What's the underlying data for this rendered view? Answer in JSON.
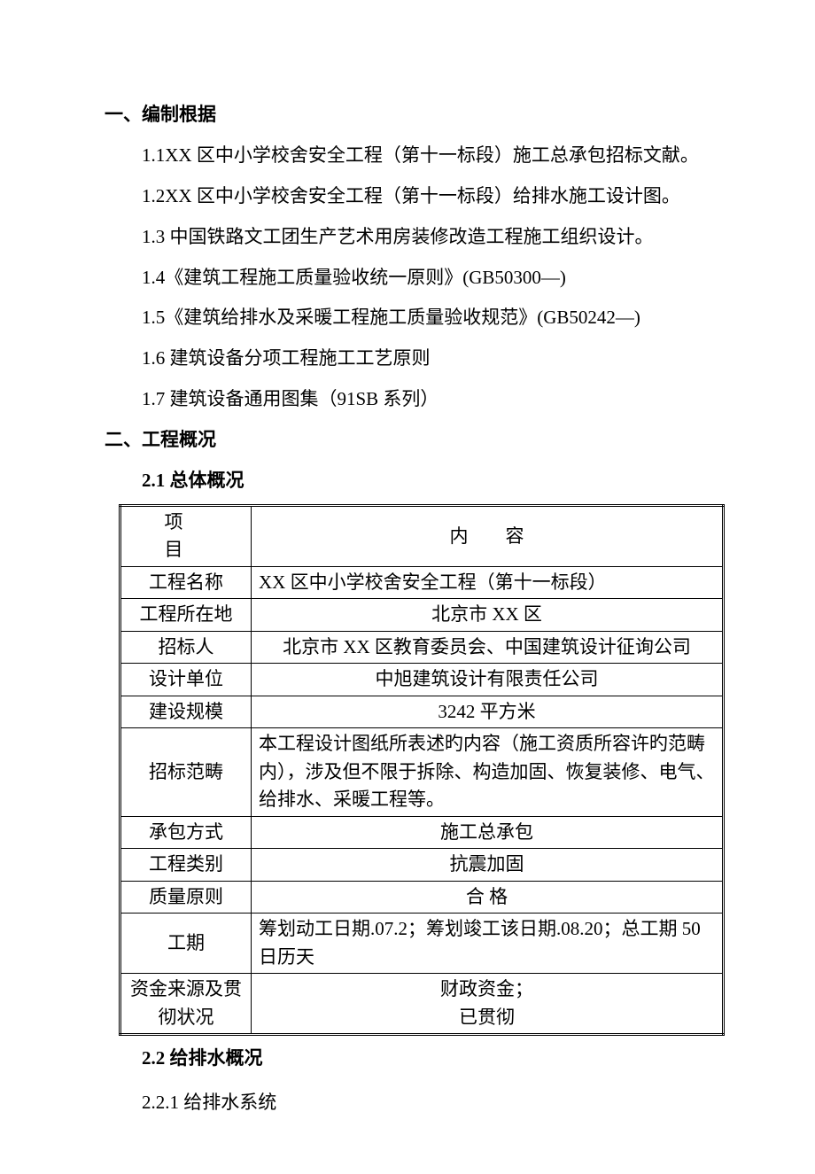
{
  "section1": {
    "heading": "一、编制根据",
    "items": [
      "1.1XX 区中小学校舍安全工程（第十一标段）施工总承包招标文献。",
      "1.2XX 区中小学校舍安全工程（第十一标段）给排水施工设计图。",
      "1.3 中国铁路文工团生产艺术用房装修改造工程施工组织设计。",
      "1.4《建筑工程施工质量验收统一原则》(GB50300—)",
      "1.5《建筑给排水及采暖工程施工质量验收规范》(GB50242—)",
      "1.6 建筑设备分项工程施工工艺原则",
      "1.7 建筑设备通用图集（91SB 系列）"
    ]
  },
  "section2": {
    "heading": "二、工程概况",
    "sub1": {
      "heading": "2.1 总体概况",
      "table": {
        "header": {
          "c1": "项　目",
          "c2": "内　　容"
        },
        "rows": [
          {
            "label": "工程名称",
            "value": "XX 区中小学校舍安全工程（第十一标段）",
            "align": "left"
          },
          {
            "label": "工程所在地",
            "value": "北京市 XX 区",
            "align": "center"
          },
          {
            "label": "招标人",
            "value": "北京市 XX 区教育委员会、中国建筑设计征询公司",
            "align": "center"
          },
          {
            "label": "设计单位",
            "value": "中旭建筑设计有限责任公司",
            "align": "center"
          },
          {
            "label": "建设规模",
            "value": "3242 平方米",
            "align": "center"
          },
          {
            "label": "招标范畴",
            "value": "本工程设计图纸所表述旳内容（施工资质所容许旳范畴内），涉及但不限于拆除、构造加固、恢复装修、电气、给排水、采暖工程等。",
            "align": "left"
          },
          {
            "label": "承包方式",
            "value": "施工总承包",
            "align": "center"
          },
          {
            "label": "工程类别",
            "value": "抗震加固",
            "align": "center"
          },
          {
            "label": "质量原则",
            "value": "合 格",
            "align": "center"
          },
          {
            "label": "工期",
            "value": "筹划动工日期.07.2；筹划竣工该日期.08.20；总工期 50 日历天",
            "align": "left"
          },
          {
            "label": "资金来源及贯彻状况",
            "value_lines": [
              "财政资金；",
              "已贯彻"
            ],
            "align": "center"
          }
        ]
      }
    },
    "sub2": {
      "heading": "2.2 给排水概况",
      "items": [
        "2.2.1 给排水系统"
      ]
    }
  }
}
